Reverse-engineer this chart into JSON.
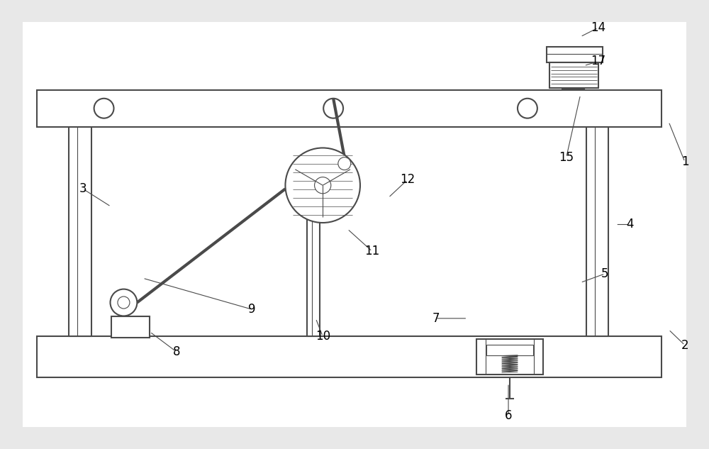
{
  "bg_color": "#e8e8e8",
  "line_color": "#4a4a4a",
  "fig_width": 10.0,
  "fig_height": 6.33,
  "labels": {
    "1": [
      0.968,
      0.64,
      "1"
    ],
    "2": [
      0.968,
      0.23,
      "2"
    ],
    "3": [
      0.115,
      0.58,
      "3"
    ],
    "4": [
      0.89,
      0.5,
      "4"
    ],
    "5": [
      0.855,
      0.39,
      "5"
    ],
    "6": [
      0.718,
      0.072,
      "6"
    ],
    "7": [
      0.615,
      0.29,
      "7"
    ],
    "8": [
      0.248,
      0.215,
      "8"
    ],
    "9": [
      0.355,
      0.31,
      "9"
    ],
    "10": [
      0.455,
      0.25,
      "10"
    ],
    "11": [
      0.525,
      0.44,
      "11"
    ],
    "12": [
      0.575,
      0.6,
      "12"
    ],
    "14": [
      0.845,
      0.94,
      "14"
    ],
    "15": [
      0.8,
      0.65,
      "15"
    ],
    "17": [
      0.845,
      0.865,
      "17"
    ]
  }
}
